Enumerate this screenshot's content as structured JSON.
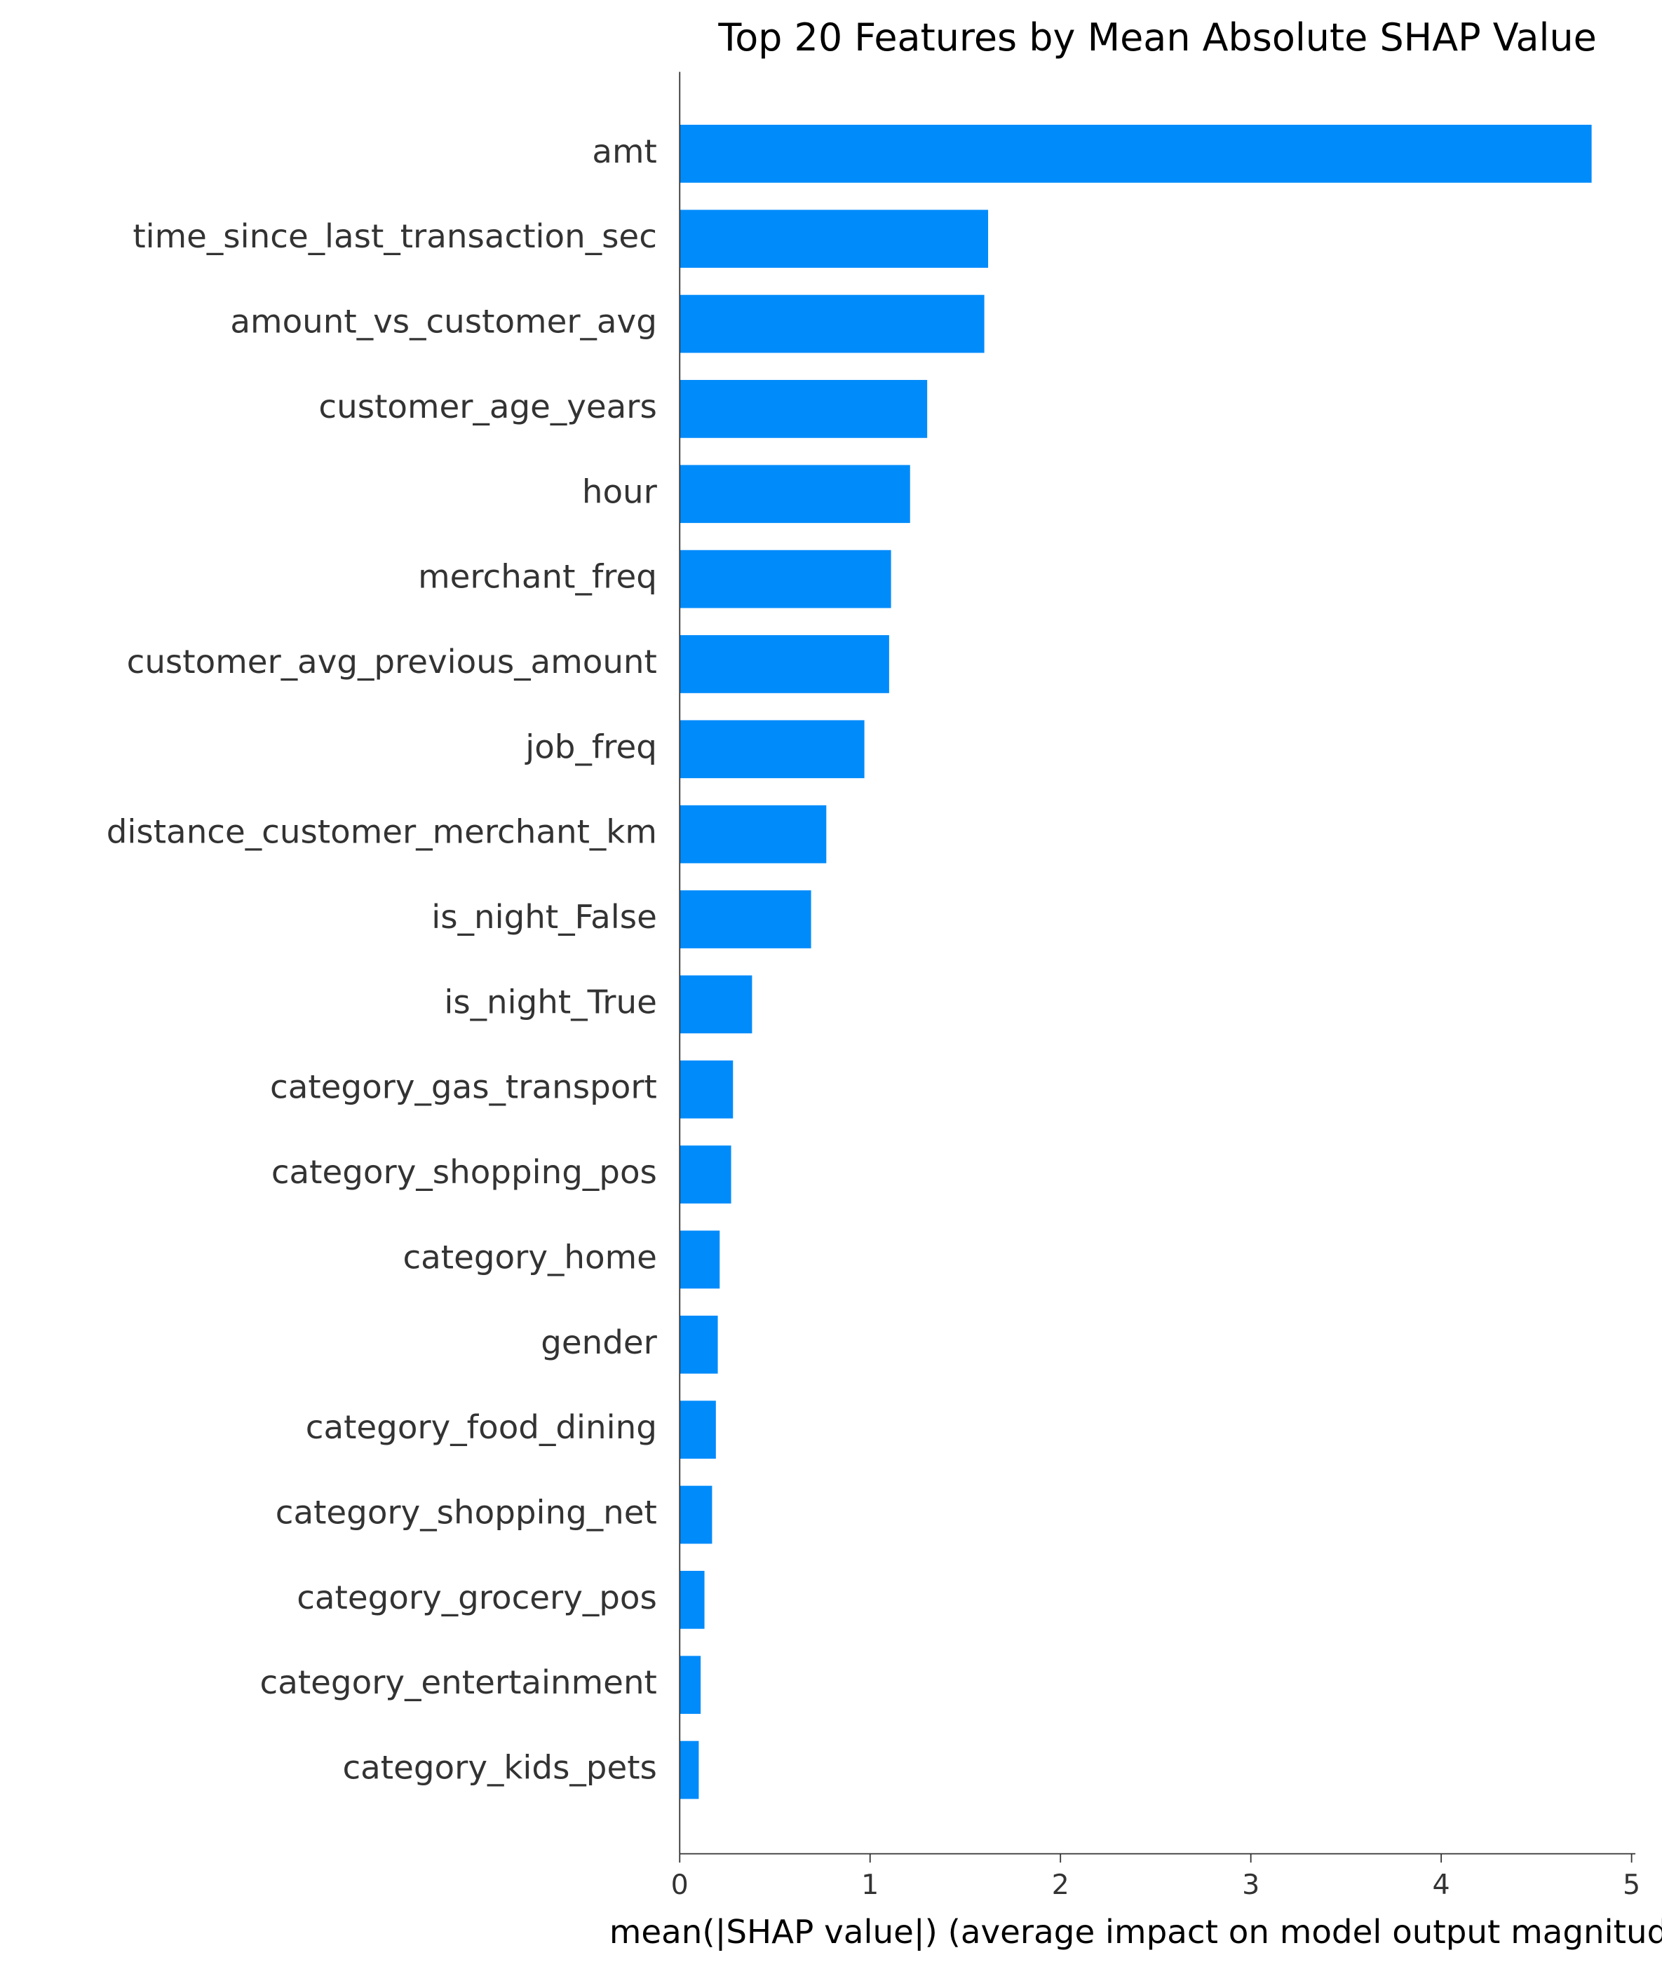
{
  "chart_data": {
    "type": "barh",
    "title": "Top 20 Features by Mean Absolute SHAP Value",
    "xlabel": "mean(|SHAP value|) (average impact on model output magnitude)",
    "categories": [
      "amt",
      "time_since_last_transaction_sec",
      "amount_vs_customer_avg",
      "customer_age_years",
      "hour",
      "merchant_freq",
      "customer_avg_previous_amount",
      "job_freq",
      "distance_customer_merchant_km",
      "is_night_False",
      "is_night_True",
      "category_gas_transport",
      "category_shopping_pos",
      "category_home",
      "gender",
      "category_food_dining",
      "category_shopping_net",
      "category_grocery_pos",
      "category_entertainment",
      "category_kids_pets"
    ],
    "values": [
      4.79,
      1.62,
      1.6,
      1.3,
      1.21,
      1.11,
      1.1,
      0.97,
      0.77,
      0.69,
      0.38,
      0.28,
      0.27,
      0.21,
      0.2,
      0.19,
      0.17,
      0.13,
      0.11,
      0.1
    ],
    "color": "#008bfb",
    "xlim": [
      0,
      5.02
    ],
    "xticks": [
      0,
      1,
      2,
      3,
      4,
      5
    ]
  }
}
